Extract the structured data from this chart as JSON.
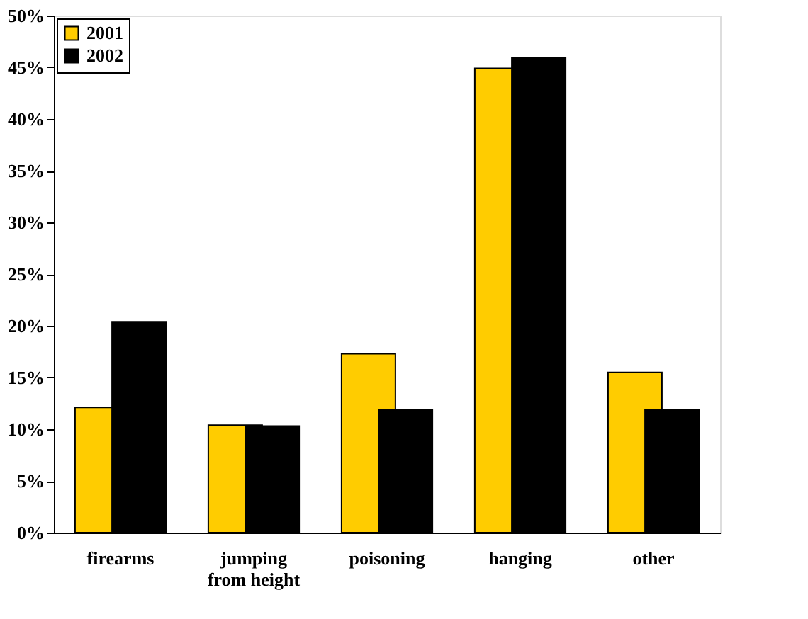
{
  "chart_data": {
    "type": "bar",
    "categories": [
      "firearms",
      "jumping from height",
      "poisoning",
      "hanging",
      "other"
    ],
    "series": [
      {
        "name": "2001",
        "color": "#ffcc00",
        "values": [
          12.1,
          10.4,
          17.3,
          44.9,
          15.5
        ]
      },
      {
        "name": "2002",
        "color": "#000000",
        "values": [
          20.4,
          10.3,
          11.9,
          45.9,
          11.9
        ]
      }
    ],
    "ylim": [
      0,
      50
    ],
    "yticks": [
      {
        "value": 0,
        "label": "0%"
      },
      {
        "value": 5,
        "label": "5%"
      },
      {
        "value": 10,
        "label": "10%"
      },
      {
        "value": 15,
        "label": "15%"
      },
      {
        "value": 20,
        "label": "20%"
      },
      {
        "value": 25,
        "label": "25%"
      },
      {
        "value": 30,
        "label": "30%"
      },
      {
        "value": 35,
        "label": "35%"
      },
      {
        "value": 40,
        "label": "40%"
      },
      {
        "value": 45,
        "label": "45%"
      },
      {
        "value": 50,
        "label": "50%"
      }
    ],
    "grid": false,
    "legend": "top left"
  }
}
